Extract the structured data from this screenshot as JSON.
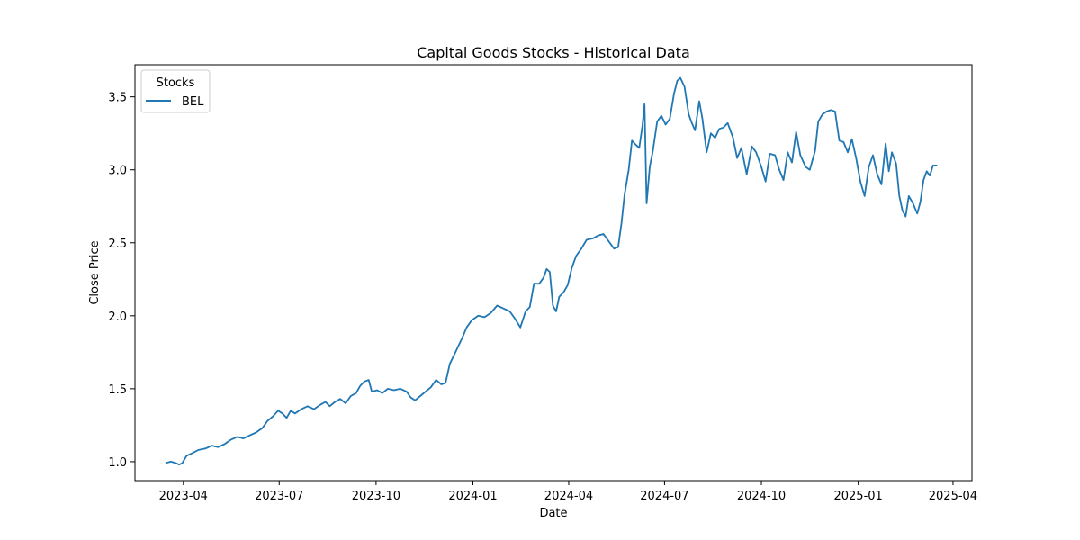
{
  "chart_data": {
    "type": "line",
    "title": "Capital Goods Stocks - Historical Data",
    "xlabel": "Date",
    "ylabel": "Close Price",
    "legend_title": "Stocks",
    "legend_position": "top-left",
    "grid": false,
    "xlim": [
      "2023-02-14",
      "2025-04-19"
    ],
    "ylim": [
      0.87,
      3.72
    ],
    "xticks": [
      "2023-04-01",
      "2023-07-01",
      "2023-10-01",
      "2024-01-01",
      "2024-04-01",
      "2024-07-01",
      "2024-10-01",
      "2025-01-01",
      "2025-04-01"
    ],
    "xtick_labels": [
      "2023-04",
      "2023-07",
      "2023-10",
      "2024-01",
      "2024-04",
      "2024-07",
      "2024-10",
      "2025-01",
      "2025-04"
    ],
    "yticks": [
      1.0,
      1.5,
      2.0,
      2.5,
      3.0,
      3.5
    ],
    "ytick_labels": [
      "1.0",
      "1.5",
      "2.0",
      "2.5",
      "3.0",
      "3.5"
    ],
    "series": [
      {
        "name": "BEL",
        "color": "#1f77b4",
        "points": [
          [
            "2023-03-15",
            0.99
          ],
          [
            "2023-03-20",
            1.0
          ],
          [
            "2023-03-25",
            0.99
          ],
          [
            "2023-03-28",
            0.98
          ],
          [
            "2023-03-31",
            0.99
          ],
          [
            "2023-04-04",
            1.04
          ],
          [
            "2023-04-10",
            1.06
          ],
          [
            "2023-04-15",
            1.08
          ],
          [
            "2023-04-22",
            1.09
          ],
          [
            "2023-04-28",
            1.11
          ],
          [
            "2023-05-04",
            1.1
          ],
          [
            "2023-05-10",
            1.12
          ],
          [
            "2023-05-16",
            1.15
          ],
          [
            "2023-05-22",
            1.17
          ],
          [
            "2023-05-28",
            1.16
          ],
          [
            "2023-06-03",
            1.18
          ],
          [
            "2023-06-09",
            1.2
          ],
          [
            "2023-06-15",
            1.23
          ],
          [
            "2023-06-20",
            1.28
          ],
          [
            "2023-06-25",
            1.31
          ],
          [
            "2023-06-30",
            1.35
          ],
          [
            "2023-07-04",
            1.33
          ],
          [
            "2023-07-08",
            1.3
          ],
          [
            "2023-07-12",
            1.35
          ],
          [
            "2023-07-16",
            1.33
          ],
          [
            "2023-07-22",
            1.36
          ],
          [
            "2023-07-28",
            1.38
          ],
          [
            "2023-08-03",
            1.36
          ],
          [
            "2023-08-09",
            1.39
          ],
          [
            "2023-08-14",
            1.41
          ],
          [
            "2023-08-18",
            1.38
          ],
          [
            "2023-08-23",
            1.41
          ],
          [
            "2023-08-28",
            1.43
          ],
          [
            "2023-09-02",
            1.4
          ],
          [
            "2023-09-07",
            1.45
          ],
          [
            "2023-09-12",
            1.47
          ],
          [
            "2023-09-16",
            1.52
          ],
          [
            "2023-09-20",
            1.55
          ],
          [
            "2023-09-24",
            1.56
          ],
          [
            "2023-09-27",
            1.48
          ],
          [
            "2023-10-02",
            1.49
          ],
          [
            "2023-10-07",
            1.47
          ],
          [
            "2023-10-12",
            1.5
          ],
          [
            "2023-10-18",
            1.49
          ],
          [
            "2023-10-24",
            1.5
          ],
          [
            "2023-10-30",
            1.48
          ],
          [
            "2023-11-03",
            1.44
          ],
          [
            "2023-11-07",
            1.42
          ],
          [
            "2023-11-12",
            1.45
          ],
          [
            "2023-11-17",
            1.48
          ],
          [
            "2023-11-22",
            1.51
          ],
          [
            "2023-11-27",
            1.56
          ],
          [
            "2023-12-02",
            1.53
          ],
          [
            "2023-12-06",
            1.54
          ],
          [
            "2023-12-10",
            1.67
          ],
          [
            "2023-12-14",
            1.73
          ],
          [
            "2023-12-18",
            1.79
          ],
          [
            "2023-12-22",
            1.85
          ],
          [
            "2023-12-26",
            1.92
          ],
          [
            "2023-12-31",
            1.97
          ],
          [
            "2024-01-06",
            2.0
          ],
          [
            "2024-01-12",
            1.99
          ],
          [
            "2024-01-18",
            2.02
          ],
          [
            "2024-01-24",
            2.07
          ],
          [
            "2024-01-30",
            2.05
          ],
          [
            "2024-02-05",
            2.03
          ],
          [
            "2024-02-10",
            1.98
          ],
          [
            "2024-02-15",
            1.92
          ],
          [
            "2024-02-20",
            2.03
          ],
          [
            "2024-02-24",
            2.06
          ],
          [
            "2024-02-28",
            2.22
          ],
          [
            "2024-03-04",
            2.22
          ],
          [
            "2024-03-08",
            2.26
          ],
          [
            "2024-03-11",
            2.32
          ],
          [
            "2024-03-14",
            2.3
          ],
          [
            "2024-03-17",
            2.07
          ],
          [
            "2024-03-20",
            2.03
          ],
          [
            "2024-03-23",
            2.13
          ],
          [
            "2024-03-27",
            2.16
          ],
          [
            "2024-03-31",
            2.21
          ],
          [
            "2024-04-04",
            2.33
          ],
          [
            "2024-04-08",
            2.41
          ],
          [
            "2024-04-13",
            2.46
          ],
          [
            "2024-04-18",
            2.52
          ],
          [
            "2024-04-24",
            2.53
          ],
          [
            "2024-04-29",
            2.55
          ],
          [
            "2024-05-04",
            2.56
          ],
          [
            "2024-05-09",
            2.51
          ],
          [
            "2024-05-14",
            2.46
          ],
          [
            "2024-05-18",
            2.47
          ],
          [
            "2024-05-21",
            2.63
          ],
          [
            "2024-05-24",
            2.83
          ],
          [
            "2024-05-28",
            3.0
          ],
          [
            "2024-05-31",
            3.2
          ],
          [
            "2024-06-04",
            3.17
          ],
          [
            "2024-06-07",
            3.15
          ],
          [
            "2024-06-10",
            3.3
          ],
          [
            "2024-06-12",
            3.45
          ],
          [
            "2024-06-14",
            2.77
          ],
          [
            "2024-06-17",
            3.02
          ],
          [
            "2024-06-20",
            3.13
          ],
          [
            "2024-06-24",
            3.33
          ],
          [
            "2024-06-28",
            3.37
          ],
          [
            "2024-07-02",
            3.31
          ],
          [
            "2024-07-06",
            3.35
          ],
          [
            "2024-07-10",
            3.52
          ],
          [
            "2024-07-13",
            3.61
          ],
          [
            "2024-07-16",
            3.63
          ],
          [
            "2024-07-20",
            3.57
          ],
          [
            "2024-07-24",
            3.38
          ],
          [
            "2024-07-27",
            3.32
          ],
          [
            "2024-07-30",
            3.27
          ],
          [
            "2024-08-03",
            3.47
          ],
          [
            "2024-08-06",
            3.35
          ],
          [
            "2024-08-10",
            3.12
          ],
          [
            "2024-08-14",
            3.25
          ],
          [
            "2024-08-18",
            3.22
          ],
          [
            "2024-08-22",
            3.28
          ],
          [
            "2024-08-26",
            3.29
          ],
          [
            "2024-08-30",
            3.32
          ],
          [
            "2024-09-04",
            3.22
          ],
          [
            "2024-09-08",
            3.08
          ],
          [
            "2024-09-12",
            3.15
          ],
          [
            "2024-09-17",
            2.97
          ],
          [
            "2024-09-22",
            3.16
          ],
          [
            "2024-09-26",
            3.12
          ],
          [
            "2024-10-01",
            3.02
          ],
          [
            "2024-10-05",
            2.92
          ],
          [
            "2024-10-09",
            3.11
          ],
          [
            "2024-10-14",
            3.1
          ],
          [
            "2024-10-18",
            3.0
          ],
          [
            "2024-10-22",
            2.93
          ],
          [
            "2024-10-26",
            3.12
          ],
          [
            "2024-10-30",
            3.05
          ],
          [
            "2024-11-03",
            3.26
          ],
          [
            "2024-11-07",
            3.1
          ],
          [
            "2024-11-12",
            3.02
          ],
          [
            "2024-11-16",
            3.0
          ],
          [
            "2024-11-21",
            3.13
          ],
          [
            "2024-11-24",
            3.33
          ],
          [
            "2024-11-28",
            3.38
          ],
          [
            "2024-12-02",
            3.4
          ],
          [
            "2024-12-06",
            3.41
          ],
          [
            "2024-12-10",
            3.4
          ],
          [
            "2024-12-14",
            3.2
          ],
          [
            "2024-12-18",
            3.19
          ],
          [
            "2024-12-22",
            3.12
          ],
          [
            "2024-12-26",
            3.21
          ],
          [
            "2024-12-30",
            3.08
          ],
          [
            "2025-01-03",
            2.92
          ],
          [
            "2025-01-07",
            2.82
          ],
          [
            "2025-01-11",
            3.02
          ],
          [
            "2025-01-15",
            3.1
          ],
          [
            "2025-01-19",
            2.97
          ],
          [
            "2025-01-23",
            2.9
          ],
          [
            "2025-01-27",
            3.18
          ],
          [
            "2025-01-30",
            2.99
          ],
          [
            "2025-02-02",
            3.12
          ],
          [
            "2025-02-06",
            3.04
          ],
          [
            "2025-02-09",
            2.82
          ],
          [
            "2025-02-12",
            2.72
          ],
          [
            "2025-02-15",
            2.68
          ],
          [
            "2025-02-18",
            2.82
          ],
          [
            "2025-02-22",
            2.77
          ],
          [
            "2025-02-26",
            2.7
          ],
          [
            "2025-03-01",
            2.78
          ],
          [
            "2025-03-04",
            2.93
          ],
          [
            "2025-03-07",
            2.99
          ],
          [
            "2025-03-10",
            2.96
          ],
          [
            "2025-03-13",
            3.03
          ],
          [
            "2025-03-17",
            3.03
          ]
        ]
      }
    ]
  }
}
